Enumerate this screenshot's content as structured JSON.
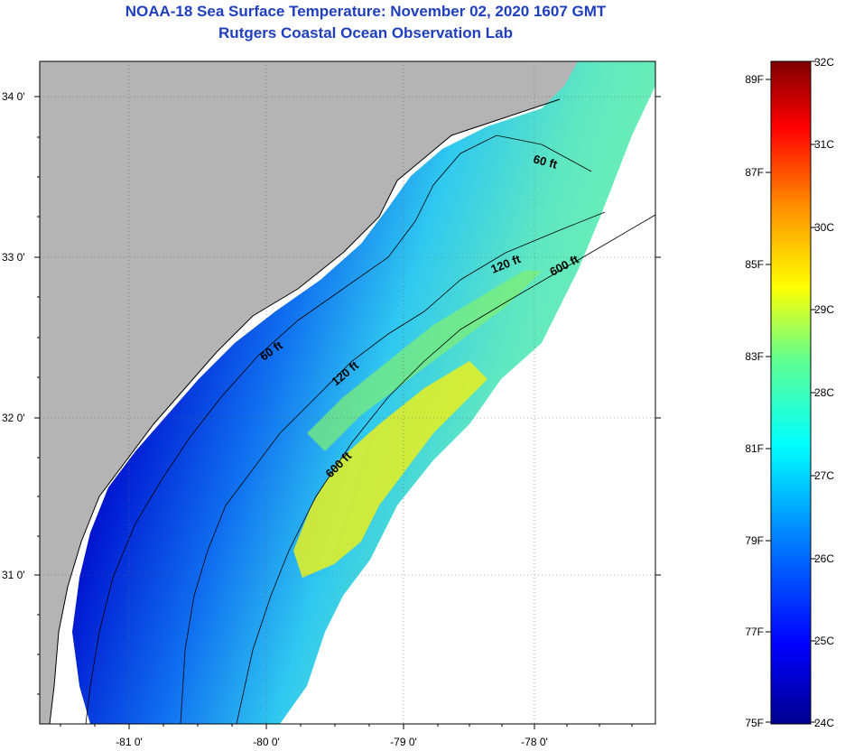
{
  "header": {
    "title": "NOAA-18 Sea Surface Temperature:  November 02, 2020 1607 GMT",
    "subtitle": "Rutgers Coastal Ocean Observation Lab"
  },
  "map": {
    "lon_ticks": [
      "-81 0'",
      "-80 0'",
      "-79 0'",
      "-78 0'"
    ],
    "lat_ticks": [
      "34 0'",
      "33 0'",
      "32 0'",
      "31 0'"
    ],
    "contours": [
      "60 ft",
      "120 ft",
      "600 ft",
      "60 ft",
      "120 ft",
      "600 ft"
    ],
    "colors": {
      "land": "#b4b4b4",
      "no_data": "#ffffff",
      "cold": "#00008f",
      "warm": "#ffe600"
    }
  },
  "colorbar": {
    "fahrenheit": [
      "89F",
      "87F",
      "85F",
      "83F",
      "81F",
      "79F",
      "77F",
      "75F"
    ],
    "celsius": [
      "32C",
      "31C",
      "30C",
      "29C",
      "28C",
      "27C",
      "26C",
      "25C",
      "24C"
    ],
    "range_c": [
      24,
      32
    ]
  }
}
